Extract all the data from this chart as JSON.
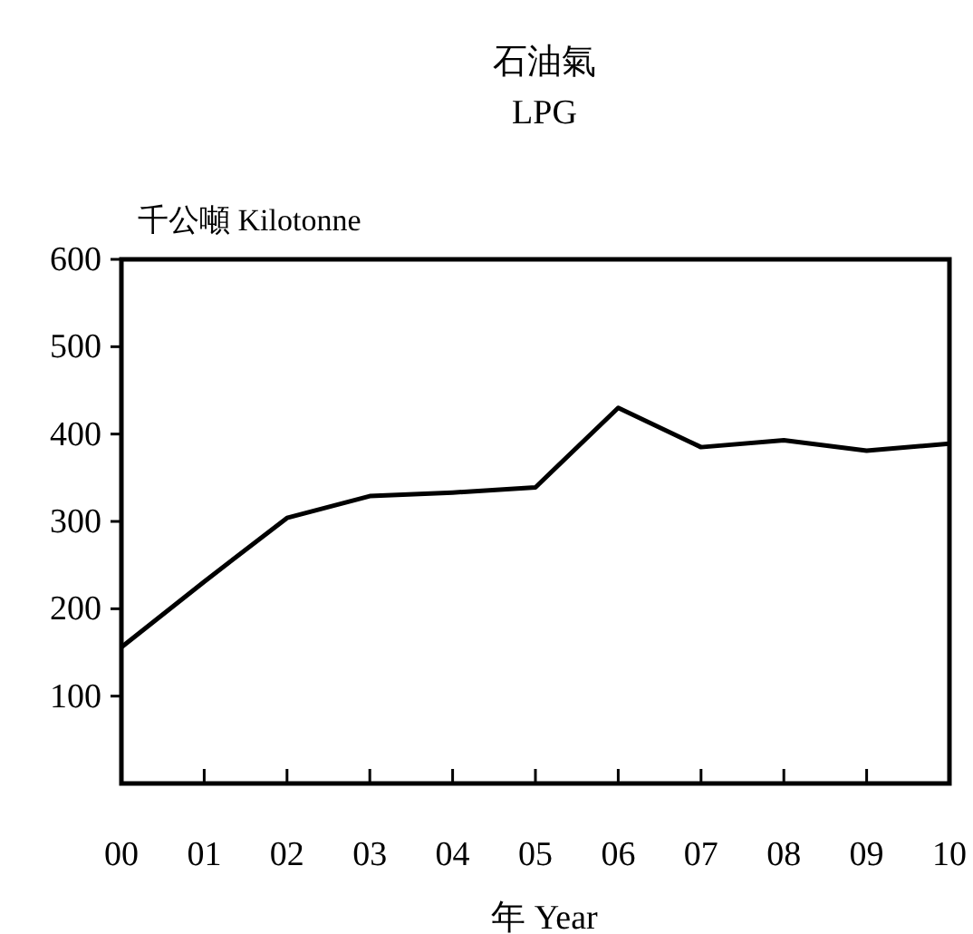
{
  "chart_data": {
    "type": "line",
    "title": "石油氣",
    "subtitle": "LPG",
    "ylabel": "千公噸 Kilotonne",
    "xlabel": "年 Year",
    "categories": [
      "00",
      "01",
      "02",
      "03",
      "04",
      "05",
      "06",
      "07",
      "08",
      "09",
      "10"
    ],
    "series": [
      {
        "color": "#000000",
        "values": [
          156,
          231,
          304,
          329,
          333,
          339,
          430,
          385,
          393,
          381,
          389
        ]
      }
    ],
    "ylim": [
      0,
      600
    ],
    "yticks": [
      100,
      200,
      300,
      400,
      500,
      600
    ]
  }
}
